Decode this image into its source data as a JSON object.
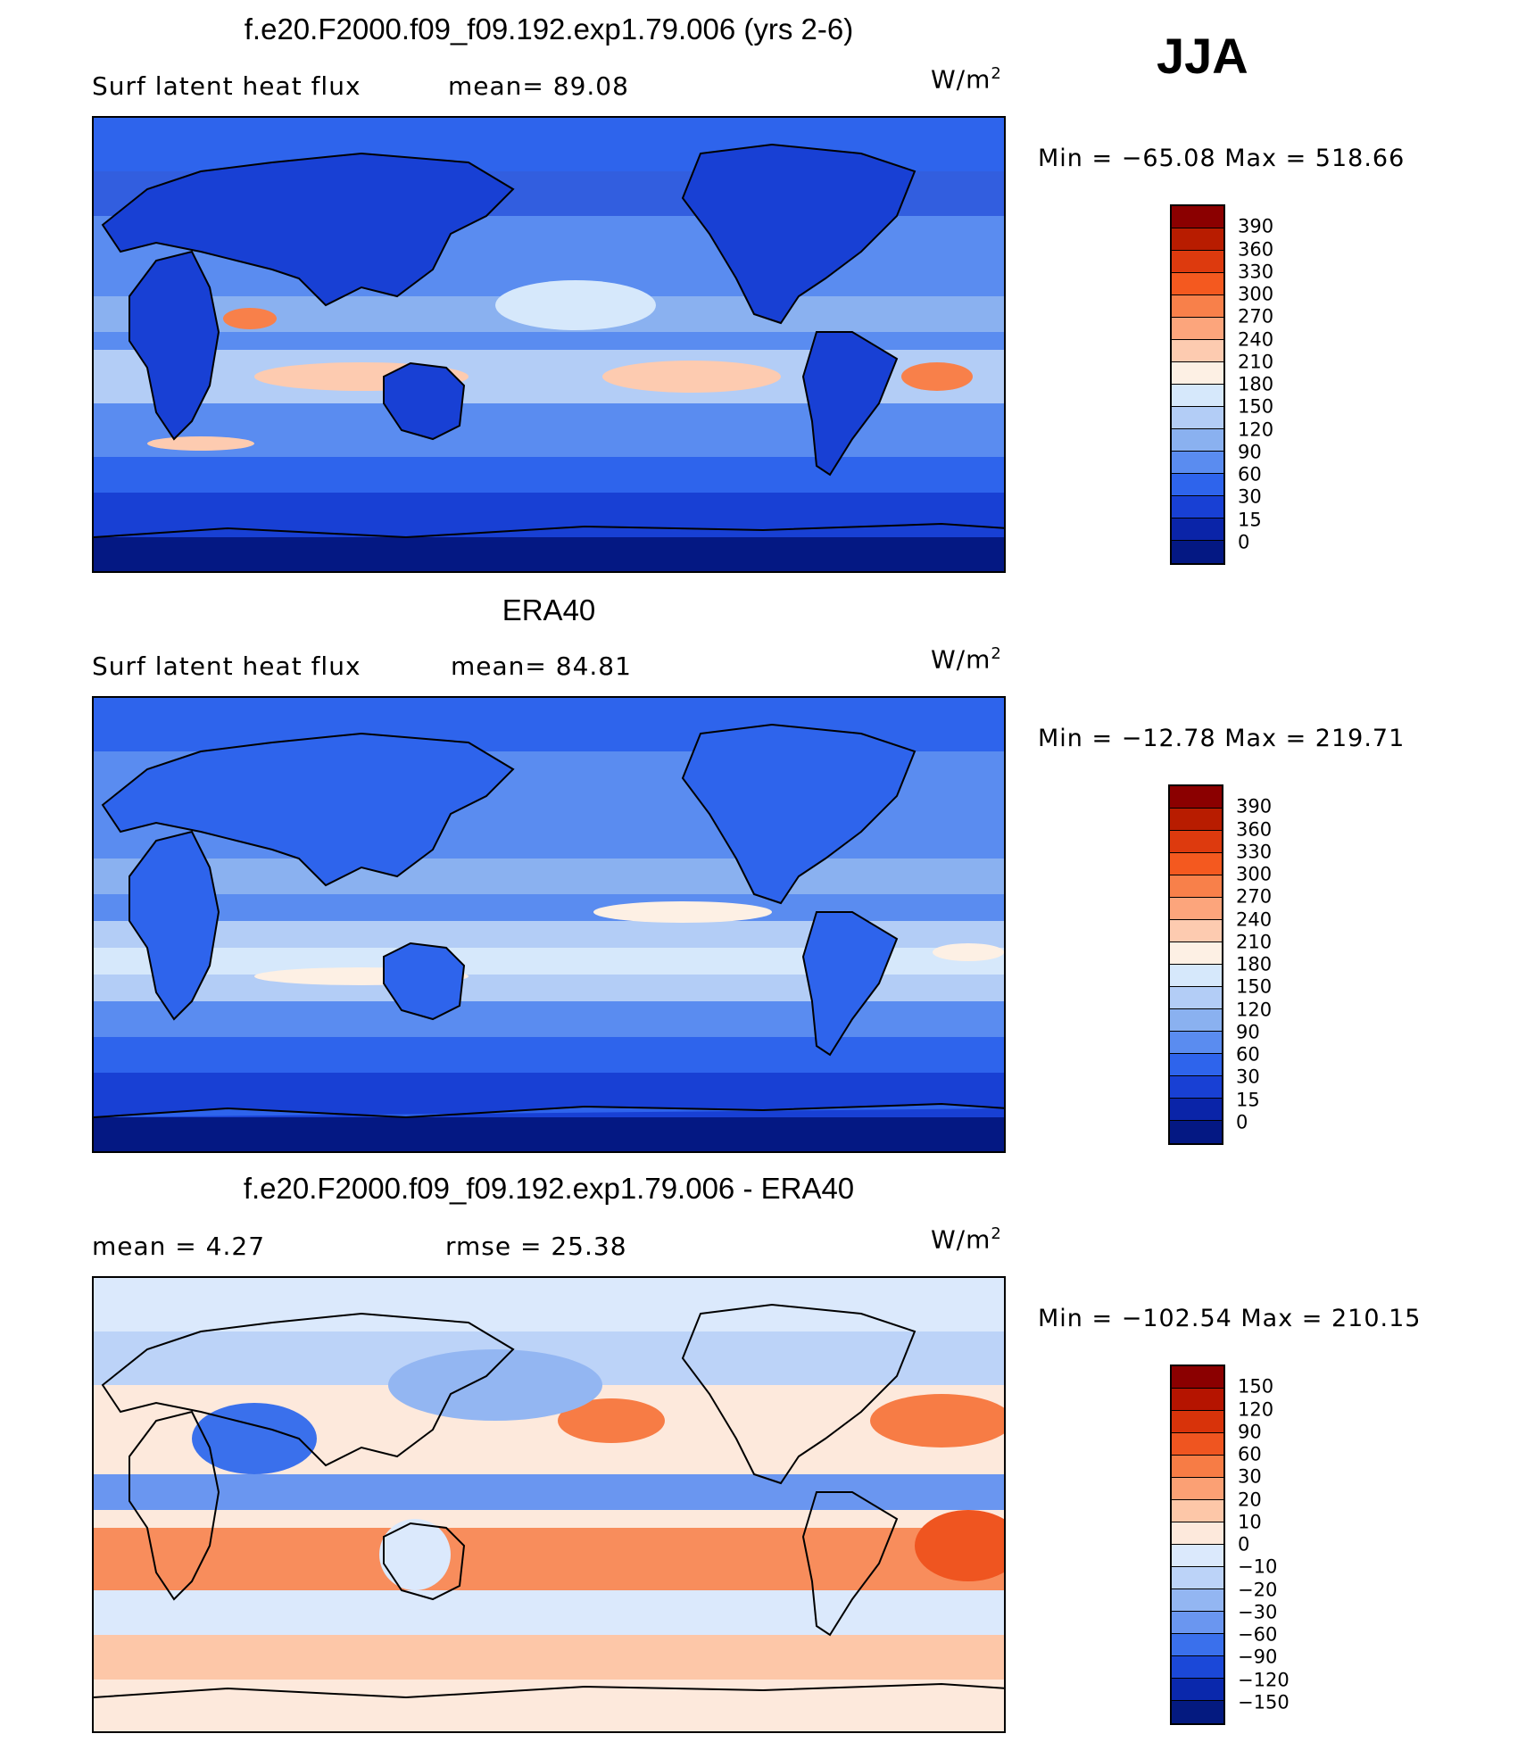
{
  "season": "JJA",
  "units_text": "W/m",
  "units_exp": "2",
  "panels": [
    {
      "title": "f.e20.F2000.f09_f09.192.exp1.79.006 (yrs 2-6)",
      "left_label": "Surf latent heat flux",
      "right_label": "mean=  89.08",
      "minmax": "Min = −65.08 Max = 518.66",
      "colorbar": {
        "labels": [
          "390",
          "360",
          "330",
          "300",
          "270",
          "240",
          "210",
          "180",
          "150",
          "120",
          "90",
          "60",
          "30",
          "15",
          "0"
        ],
        "colors": [
          "#8b0000",
          "#b81c00",
          "#dd3a0e",
          "#f4591f",
          "#f8804a",
          "#fca57c",
          "#fdcbb0",
          "#fdf0e4",
          "#d6e8fb",
          "#b3cdf6",
          "#8ab1f0",
          "#5a8cf0",
          "#2e64ec",
          "#1840d4",
          "#0a24a8",
          "#041883"
        ]
      },
      "chart_data": {
        "type": "heatmap",
        "title": "f.e20.F2000.f09_f09.192.exp1.79.006 (yrs 2-6)",
        "variable": "Surf latent heat flux",
        "units": "W/m2",
        "mean": 89.08,
        "min": -65.08,
        "max": 518.66,
        "levels": [
          0,
          15,
          30,
          60,
          90,
          120,
          150,
          180,
          210,
          240,
          270,
          300,
          330,
          360,
          390
        ]
      }
    },
    {
      "title": "ERA40",
      "left_label": "Surf latent heat flux",
      "right_label": "mean=  84.81",
      "minmax": "Min = −12.78 Max = 219.71",
      "colorbar": {
        "labels": [
          "390",
          "360",
          "330",
          "300",
          "270",
          "240",
          "210",
          "180",
          "150",
          "120",
          "90",
          "60",
          "30",
          "15",
          "0"
        ],
        "colors": [
          "#8b0000",
          "#b81c00",
          "#dd3a0e",
          "#f4591f",
          "#f8804a",
          "#fca57c",
          "#fdcbb0",
          "#fdf0e4",
          "#d6e8fb",
          "#b3cdf6",
          "#8ab1f0",
          "#5a8cf0",
          "#2e64ec",
          "#1840d4",
          "#0a24a8",
          "#041883"
        ]
      },
      "chart_data": {
        "type": "heatmap",
        "title": "ERA40",
        "variable": "Surf latent heat flux",
        "units": "W/m2",
        "mean": 84.81,
        "min": -12.78,
        "max": 219.71,
        "levels": [
          0,
          15,
          30,
          60,
          90,
          120,
          150,
          180,
          210,
          240,
          270,
          300,
          330,
          360,
          390
        ]
      }
    },
    {
      "title": "f.e20.F2000.f09_f09.192.exp1.79.006 - ERA40",
      "left_label": "mean =   4.27",
      "right_label": "rmse =  25.38",
      "minmax": "Min = −102.54 Max = 210.15",
      "colorbar": {
        "labels": [
          "150",
          "120",
          "90",
          "60",
          "30",
          "20",
          "10",
          "0",
          "−10",
          "−20",
          "−30",
          "−60",
          "−90",
          "−120",
          "−150"
        ],
        "colors": [
          "#8b0000",
          "#b51400",
          "#d8330a",
          "#ef5520",
          "#f77c45",
          "#fba074",
          "#fdc7a8",
          "#fde9dc",
          "#dbe9fc",
          "#bcd3f8",
          "#93b6f2",
          "#6a96f0",
          "#3a70ec",
          "#1b48d8",
          "#0a28ac",
          "#041a80"
        ]
      },
      "chart_data": {
        "type": "heatmap",
        "title": "f.e20.F2000.f09_f09.192.exp1.79.006 - ERA40",
        "units": "W/m2",
        "mean": 4.27,
        "rmse": 25.38,
        "min": -102.54,
        "max": 210.15,
        "levels": [
          -150,
          -120,
          -90,
          -60,
          -30,
          -20,
          -10,
          0,
          10,
          20,
          30,
          60,
          90,
          120,
          150
        ]
      }
    }
  ]
}
